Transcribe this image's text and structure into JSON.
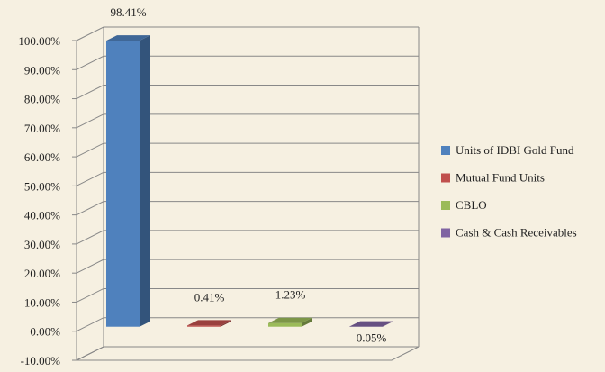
{
  "chart_data": {
    "type": "bar3d",
    "series": [
      {
        "name": "Units of IDBI Gold Fund",
        "color": "#4f81bd",
        "values": [
          98.41
        ],
        "value_labels": [
          "98.41%"
        ]
      },
      {
        "name": "Mutual Fund Units",
        "color": "#c0504d",
        "values": [
          0.41
        ],
        "value_labels": [
          "0.41%"
        ]
      },
      {
        "name": "CBLO",
        "color": "#9bbb59",
        "values": [
          1.23
        ],
        "value_labels": [
          "1.23%"
        ]
      },
      {
        "name": "Cash & Cash Receivables",
        "color": "#8064a2",
        "values": [
          0.05
        ],
        "value_labels": [
          "0.05%"
        ]
      }
    ],
    "ylim": [
      -10,
      100
    ],
    "yticks": [
      {
        "value": -10,
        "label": "-10.00%"
      },
      {
        "value": 0,
        "label": "0.00%"
      },
      {
        "value": 10,
        "label": "10.00%"
      },
      {
        "value": 20,
        "label": "20.00%"
      },
      {
        "value": 30,
        "label": "30.00%"
      },
      {
        "value": 40,
        "label": "40.00%"
      },
      {
        "value": 50,
        "label": "50.00%"
      },
      {
        "value": 60,
        "label": "60.00%"
      },
      {
        "value": 70,
        "label": "70.00%"
      },
      {
        "value": 80,
        "label": "80.00%"
      },
      {
        "value": 90,
        "label": "90.00%"
      },
      {
        "value": 100,
        "label": "100.00%"
      }
    ],
    "grid": true,
    "legend": "right"
  }
}
